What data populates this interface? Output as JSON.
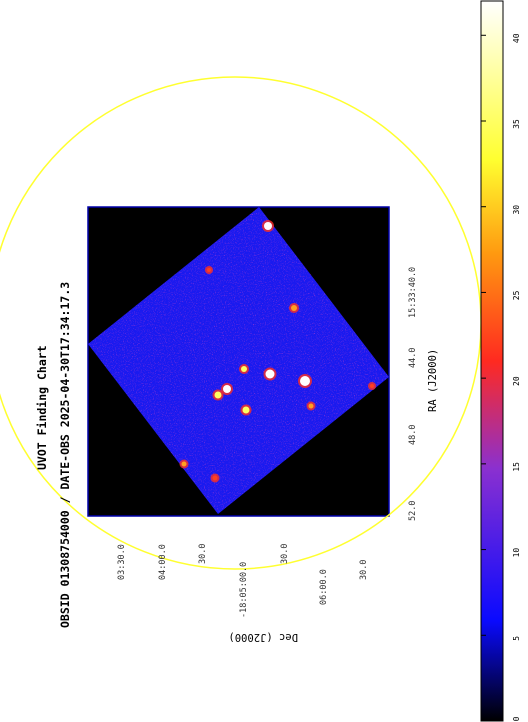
{
  "title": "UVOT Finding Chart",
  "subtitle": "OBSID 01308754000 / DATE-OBS 2025-04-30T17:34:17.3",
  "axes": {
    "ra_label": "RA (J2000)",
    "dec_label": "Dec (J2000)",
    "ra_ticks": [
      "52.0",
      "48.0",
      "44.0",
      "15:33:40.0"
    ],
    "dec_ticks": [
      "30.0",
      "06:00.0",
      "30.0",
      "-18:05:00.0",
      "30.0",
      "04:00.0",
      "03:30.0"
    ]
  },
  "colorbar": {
    "ticks": [
      "0",
      "5",
      "10",
      "15",
      "20",
      "25",
      "30",
      "35",
      "40"
    ],
    "range": [
      0,
      42
    ],
    "colors": [
      "#000000",
      "#1010ff",
      "#9030c0",
      "#ff3020",
      "#ff9010",
      "#ffff30",
      "#ffffff"
    ]
  },
  "colors": {
    "circle": "#ffff30",
    "image_border": "#0000aa",
    "sky_background": "#1a1aef"
  },
  "sources": [
    {
      "id": "s1",
      "intensity": 42
    },
    {
      "id": "s2",
      "intensity": 40
    },
    {
      "id": "s3",
      "intensity": 38
    },
    {
      "id": "s4",
      "intensity": 35
    },
    {
      "id": "s5",
      "intensity": 33
    },
    {
      "id": "s6",
      "intensity": 30
    },
    {
      "id": "s7",
      "intensity": 28
    },
    {
      "id": "s8",
      "intensity": 26
    },
    {
      "id": "s9",
      "intensity": 22
    },
    {
      "id": "s10",
      "intensity": 20
    },
    {
      "id": "s11",
      "intensity": 18
    },
    {
      "id": "s12",
      "intensity": 16
    },
    {
      "id": "s13",
      "intensity": 14
    }
  ]
}
